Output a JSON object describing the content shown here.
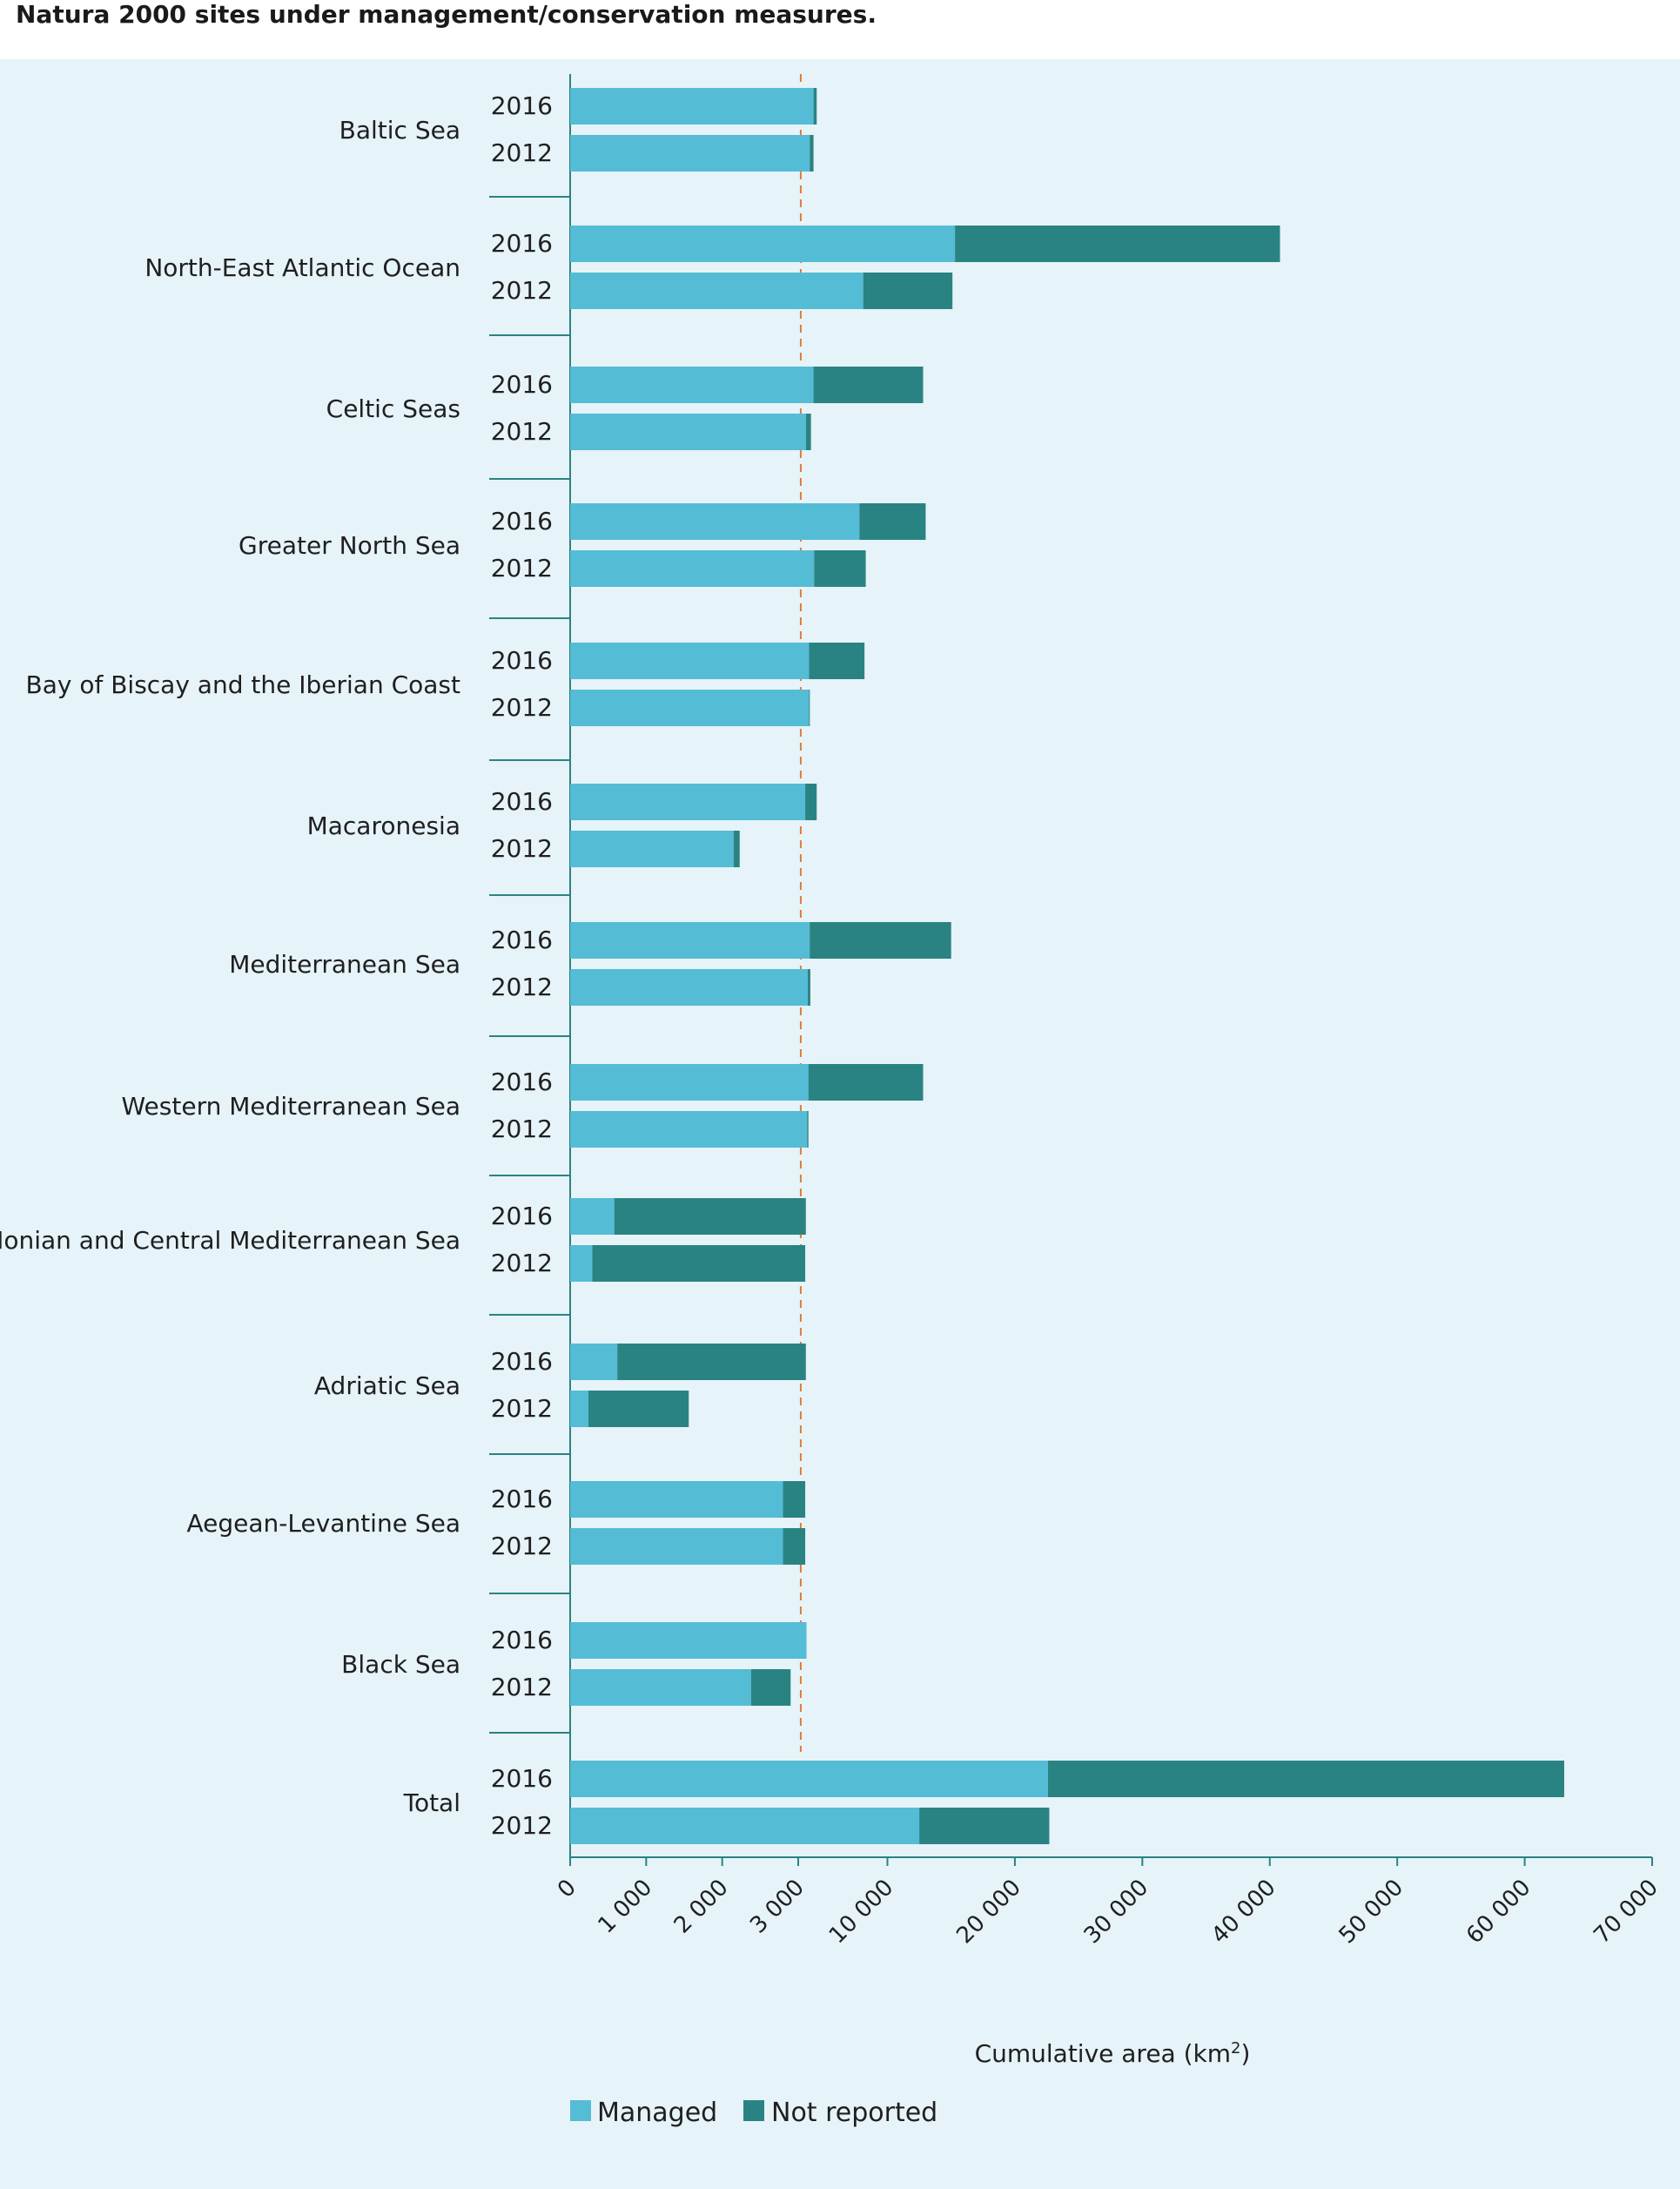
{
  "title": "Natura 2000 sites under management/conservation measures.",
  "chart_data": {
    "type": "bar",
    "orientation": "horizontal",
    "stacked": true,
    "x_scale": "broken: linear 0–3 000 then linear 3 000–70 000",
    "xlabel": "Cumulative area (km²)",
    "xlabel_base": "Cumulative area (km",
    "xlabel_sup": "2",
    "xlabel_end": ")",
    "ticks": [
      "0",
      "1 000",
      "2 000",
      "3 000",
      "10 000",
      "20 000",
      "30 000",
      "40 000",
      "50 000",
      "60 000",
      "70 000"
    ],
    "tick_values": [
      0,
      1000,
      2000,
      3000,
      10000,
      20000,
      30000,
      40000,
      50000,
      60000,
      70000
    ],
    "reference_line": 3200,
    "legend_position": "bottom-left",
    "series": [
      {
        "name": "Managed",
        "color": "#55bcd5"
      },
      {
        "name": "Not reported",
        "color": "#2a8383"
      }
    ],
    "groups": [
      {
        "category": "Baltic Sea",
        "bars": [
          {
            "year": "2016",
            "managed": 4200,
            "not_reported": 250
          },
          {
            "year": "2012",
            "managed": 3900,
            "not_reported": 300
          }
        ]
      },
      {
        "category": "North-East Atlantic Ocean",
        "bars": [
          {
            "year": "2016",
            "managed": 15300,
            "not_reported": 25500
          },
          {
            "year": "2012",
            "managed": 8100,
            "not_reported": 7000
          }
        ]
      },
      {
        "category": "Celtic Seas",
        "bars": [
          {
            "year": "2016",
            "managed": 4200,
            "not_reported": 8600
          },
          {
            "year": "2012",
            "managed": 3600,
            "not_reported": 400
          }
        ]
      },
      {
        "category": "Greater North Sea",
        "bars": [
          {
            "year": "2016",
            "managed": 7800,
            "not_reported": 5200
          },
          {
            "year": "2012",
            "managed": 4250,
            "not_reported": 4050
          }
        ]
      },
      {
        "category": "Bay of Biscay and the Iberian Coast",
        "bars": [
          {
            "year": "2016",
            "managed": 3850,
            "not_reported": 4350
          },
          {
            "year": "2012",
            "managed": 3850,
            "not_reported": 60
          }
        ]
      },
      {
        "category": "Macaronesia",
        "bars": [
          {
            "year": "2016",
            "managed": 3550,
            "not_reported": 900
          },
          {
            "year": "2012",
            "managed": 2150,
            "not_reported": 80
          }
        ]
      },
      {
        "category": "Mediterranean Sea",
        "bars": [
          {
            "year": "2016",
            "managed": 3900,
            "not_reported": 11100
          },
          {
            "year": "2012",
            "managed": 3750,
            "not_reported": 200
          }
        ]
      },
      {
        "category": "Western Mediterranean Sea",
        "bars": [
          {
            "year": "2016",
            "managed": 3800,
            "not_reported": 9000
          },
          {
            "year": "2012",
            "managed": 3700,
            "not_reported": 100
          }
        ]
      },
      {
        "category": "Ionian and Central Mediterranean Sea",
        "bars": [
          {
            "year": "2016",
            "managed": 580,
            "not_reported": 3020
          },
          {
            "year": "2012",
            "managed": 290,
            "not_reported": 3260
          }
        ]
      },
      {
        "category": "Adriatic Sea",
        "bars": [
          {
            "year": "2016",
            "managed": 620,
            "not_reported": 2980
          },
          {
            "year": "2012",
            "managed": 240,
            "not_reported": 1320
          }
        ]
      },
      {
        "category": "Aegean-Levantine Sea",
        "bars": [
          {
            "year": "2016",
            "managed": 2800,
            "not_reported": 750
          },
          {
            "year": "2012",
            "managed": 2800,
            "not_reported": 750
          }
        ]
      },
      {
        "category": "Black Sea",
        "bars": [
          {
            "year": "2016",
            "managed": 3650,
            "not_reported": 0
          },
          {
            "year": "2012",
            "managed": 2380,
            "not_reported": 520
          }
        ]
      },
      {
        "category": "Total",
        "bars": [
          {
            "year": "2016",
            "managed": 22600,
            "not_reported": 40500
          },
          {
            "year": "2012",
            "managed": 12500,
            "not_reported": 10200
          }
        ]
      }
    ]
  }
}
